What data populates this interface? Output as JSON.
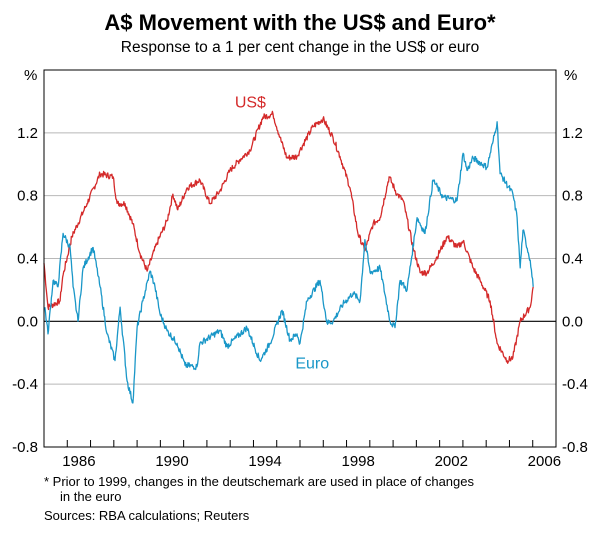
{
  "chart_data": {
    "type": "line",
    "title": "A$ Movement with the US$ and Euro*",
    "subtitle": "Response to a 1 per cent change in the US$ or euro",
    "ylabel_left": "%",
    "ylabel_right": "%",
    "xlim": [
      1985,
      2007
    ],
    "ylim": [
      -0.8,
      1.6
    ],
    "yticks": [
      "1.2",
      "0.8",
      "0.4",
      "0.0",
      "-0.4",
      "-0.8"
    ],
    "ytick_values": [
      1.2,
      0.8,
      0.4,
      0.0,
      -0.4,
      -0.8
    ],
    "xticks": [
      "1986",
      "1990",
      "1994",
      "1998",
      "2002",
      "2006"
    ],
    "xtick_values": [
      1986,
      1990,
      1994,
      1998,
      2002,
      2006
    ],
    "grid": true,
    "series": [
      {
        "name": "US$",
        "color": "#d42a2a",
        "points": [
          [
            1985.0,
            0.37
          ],
          [
            1985.17,
            0.09
          ],
          [
            1985.69,
            0.13
          ],
          [
            1985.8,
            0.28
          ],
          [
            1986.2,
            0.54
          ],
          [
            1986.85,
            0.75
          ],
          [
            1987.41,
            0.94
          ],
          [
            1987.97,
            0.92
          ],
          [
            1988.14,
            0.75
          ],
          [
            1988.48,
            0.75
          ],
          [
            1988.82,
            0.62
          ],
          [
            1989.13,
            0.43
          ],
          [
            1989.43,
            0.32
          ],
          [
            1989.86,
            0.5
          ],
          [
            1990.29,
            0.64
          ],
          [
            1990.54,
            0.81
          ],
          [
            1990.75,
            0.71
          ],
          [
            1991.15,
            0.85
          ],
          [
            1991.7,
            0.9
          ],
          [
            1992.13,
            0.75
          ],
          [
            1992.56,
            0.83
          ],
          [
            1992.99,
            0.96
          ],
          [
            1993.42,
            1.03
          ],
          [
            1993.85,
            1.09
          ],
          [
            1994.41,
            1.3
          ],
          [
            1994.84,
            1.32
          ],
          [
            1995.14,
            1.17
          ],
          [
            1995.44,
            1.04
          ],
          [
            1995.87,
            1.05
          ],
          [
            1996.0,
            1.09
          ],
          [
            1996.56,
            1.24
          ],
          [
            1996.99,
            1.29
          ],
          [
            1997.42,
            1.17
          ],
          [
            1997.72,
            1.05
          ],
          [
            1998.15,
            0.85
          ],
          [
            1998.49,
            0.56
          ],
          [
            1998.79,
            0.45
          ],
          [
            1999.14,
            0.62
          ],
          [
            1999.44,
            0.66
          ],
          [
            1999.83,
            0.92
          ],
          [
            2000.17,
            0.81
          ],
          [
            2000.43,
            0.77
          ],
          [
            2000.86,
            0.47
          ],
          [
            2001.16,
            0.31
          ],
          [
            2001.46,
            0.31
          ],
          [
            2001.89,
            0.41
          ],
          [
            2002.32,
            0.54
          ],
          [
            2002.75,
            0.47
          ],
          [
            2003.01,
            0.51
          ],
          [
            2003.44,
            0.34
          ],
          [
            2003.74,
            0.26
          ],
          [
            2004.17,
            0.13
          ],
          [
            2004.47,
            -0.14
          ],
          [
            2004.9,
            -0.25
          ],
          [
            2005.15,
            -0.23
          ],
          [
            2005.46,
            0.0
          ],
          [
            2005.89,
            0.09
          ],
          [
            2006.02,
            0.22
          ]
        ]
      },
      {
        "name": "Euro",
        "color": "#1a97c8",
        "points": [
          [
            1985.04,
            0.09
          ],
          [
            1985.17,
            -0.08
          ],
          [
            1985.39,
            0.26
          ],
          [
            1985.6,
            0.22
          ],
          [
            1985.82,
            0.56
          ],
          [
            1986.12,
            0.47
          ],
          [
            1986.25,
            0.22
          ],
          [
            1986.46,
            0.0
          ],
          [
            1986.68,
            0.34
          ],
          [
            1987.11,
            0.47
          ],
          [
            1987.41,
            0.22
          ],
          [
            1987.71,
            -0.08
          ],
          [
            1988.05,
            -0.25
          ],
          [
            1988.27,
            0.09
          ],
          [
            1988.57,
            -0.38
          ],
          [
            1988.82,
            -0.52
          ],
          [
            1989.0,
            -0.04
          ],
          [
            1989.25,
            0.13
          ],
          [
            1989.56,
            0.32
          ],
          [
            1989.77,
            0.22
          ],
          [
            1989.98,
            0.05
          ],
          [
            1990.29,
            -0.06
          ],
          [
            1990.72,
            -0.14
          ],
          [
            1991.06,
            -0.28
          ],
          [
            1991.57,
            -0.29
          ],
          [
            1991.7,
            -0.14
          ],
          [
            1992.56,
            -0.06
          ],
          [
            1992.86,
            -0.16
          ],
          [
            1993.72,
            -0.04
          ],
          [
            1994.28,
            -0.25
          ],
          [
            1994.71,
            -0.14
          ],
          [
            1995.23,
            0.07
          ],
          [
            1995.57,
            -0.12
          ],
          [
            1995.87,
            -0.08
          ],
          [
            1996.0,
            -0.14
          ],
          [
            1996.3,
            0.13
          ],
          [
            1996.86,
            0.26
          ],
          [
            1997.16,
            -0.01
          ],
          [
            1997.42,
            0.0
          ],
          [
            1997.85,
            0.11
          ],
          [
            1998.28,
            0.18
          ],
          [
            1998.58,
            0.13
          ],
          [
            1998.79,
            0.52
          ],
          [
            1999.01,
            0.31
          ],
          [
            1999.44,
            0.34
          ],
          [
            1999.87,
            0.0
          ],
          [
            2000.08,
            -0.04
          ],
          [
            2000.3,
            0.26
          ],
          [
            2000.6,
            0.2
          ],
          [
            2001.03,
            0.66
          ],
          [
            2001.37,
            0.56
          ],
          [
            2001.72,
            0.9
          ],
          [
            2002.15,
            0.79
          ],
          [
            2002.75,
            0.77
          ],
          [
            2003.01,
            1.07
          ],
          [
            2003.18,
            0.96
          ],
          [
            2003.44,
            1.04
          ],
          [
            2004.04,
            0.98
          ],
          [
            2004.3,
            1.15
          ],
          [
            2004.47,
            1.27
          ],
          [
            2004.6,
            0.94
          ],
          [
            2005.15,
            0.81
          ],
          [
            2005.33,
            0.66
          ],
          [
            2005.46,
            0.34
          ],
          [
            2005.58,
            0.58
          ],
          [
            2005.89,
            0.39
          ],
          [
            2006.02,
            0.22
          ]
        ]
      }
    ],
    "annotations": [
      {
        "text": "US$",
        "series": "US$",
        "at": [
          1993.2,
          1.36
        ]
      },
      {
        "text": "Euro",
        "series": "Euro",
        "at": [
          1995.8,
          -0.3
        ]
      }
    ]
  },
  "footnote": {
    "line1": "*   Prior to 1999, changes in the deutschemark are used in place of changes",
    "line2": "in the euro",
    "sources": "Sources: RBA calculations; Reuters"
  }
}
